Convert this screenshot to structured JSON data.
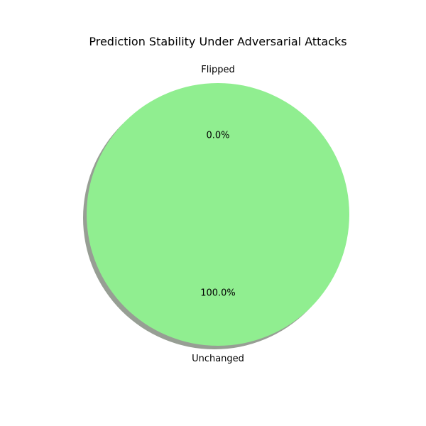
{
  "chart_data": {
    "type": "pie",
    "title": "Prediction Stability Under Adversarial Attacks",
    "categories": [
      "Flipped",
      "Unchanged"
    ],
    "values": [
      0.0,
      100.0
    ],
    "percent_labels": [
      "0.0%",
      "100.0%"
    ],
    "colors": [
      "#f08080",
      "#90ee90"
    ],
    "shadow": true,
    "start_angle_deg": 90
  }
}
